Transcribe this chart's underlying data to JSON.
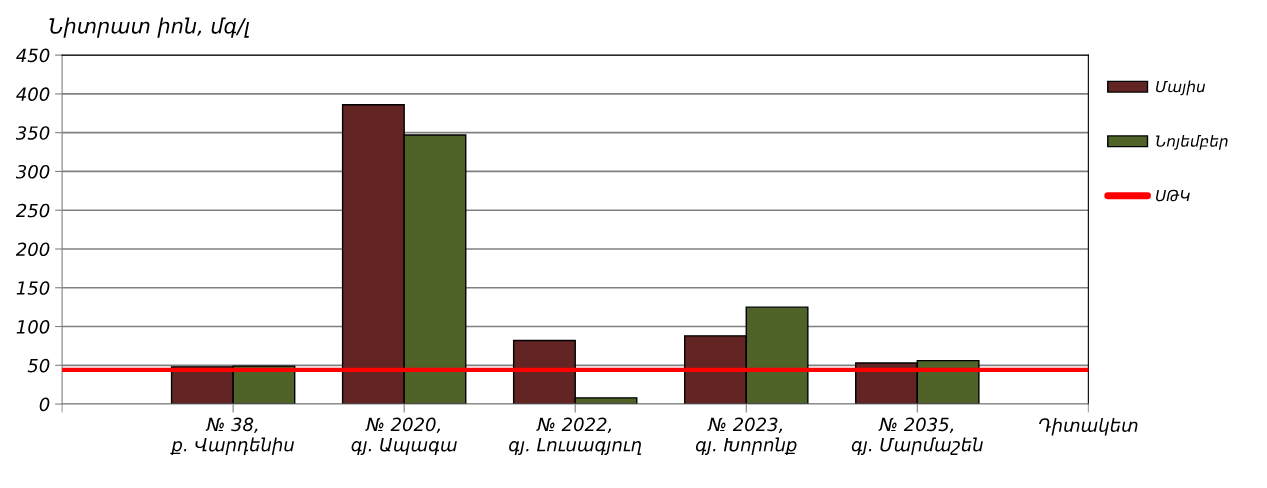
{
  "chart_data": {
    "type": "bar",
    "ylabel": "Նիտրատ իոն, մգ/լ",
    "xlabel": "Դիտակետ",
    "categories": [
      "№ 38,\nք. Վարդենիս",
      "№ 2020,\nգյ. Ապագա",
      "№ 2022,\nգյ. Լուսագյուղ",
      "№ 2023,\nգյ. Խորոնք",
      "№ 2035,\nգյ. Մարմաշեն"
    ],
    "series": [
      {
        "name": "Մայիս",
        "color": "#632523",
        "values": [
          48,
          386,
          82,
          88,
          53
        ]
      },
      {
        "name": "Նոյեմբեր",
        "color": "#4f6228",
        "values": [
          49,
          347,
          8,
          125,
          56
        ]
      }
    ],
    "ref_lines": [
      {
        "axis": "y",
        "value": 44,
        "label": "ՍԹԿ",
        "color": "#ff0000",
        "line_style": "solid"
      }
    ],
    "ylim": [
      0,
      450
    ],
    "yticks": [
      0,
      50,
      100,
      150,
      200,
      250,
      300,
      350,
      400,
      450
    ],
    "grid": "y",
    "legend": "right"
  }
}
